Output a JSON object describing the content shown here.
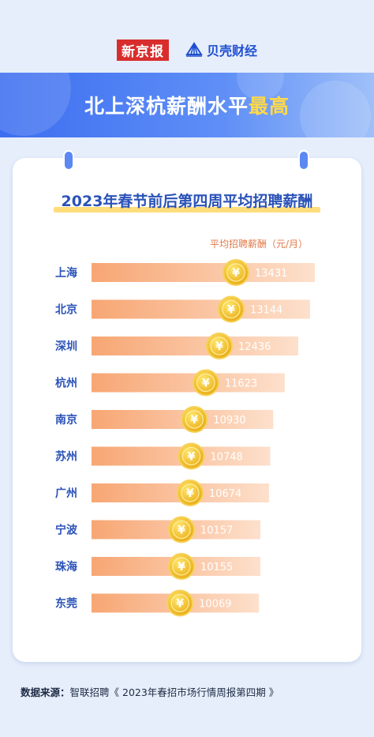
{
  "header": {
    "logo_left": "新京报",
    "logo_right": "贝壳财经",
    "banner_title_main": "北上深杭薪酬水平",
    "banner_title_highlight": "最高"
  },
  "chart_data": {
    "type": "bar",
    "orientation": "horizontal",
    "title": "2023年春节前后第四周平均招聘薪酬",
    "value_label": "平均招聘薪酬（元/月）",
    "categories": [
      "上海",
      "北京",
      "深圳",
      "杭州",
      "南京",
      "苏州",
      "广州",
      "宁波",
      "珠海",
      "东莞"
    ],
    "values": [
      13431,
      13144,
      12436,
      11623,
      10930,
      10748,
      10674,
      10157,
      10155,
      10069
    ],
    "bar_color_start": "#f7a673",
    "bar_color_end": "#fde0cc",
    "label_color": "#2a52b8",
    "coin_symbol": "¥"
  },
  "footer": {
    "source_label": "数据来源：",
    "source_text": "智联招聘《 2023年春招市场行情周报第四期 》"
  }
}
